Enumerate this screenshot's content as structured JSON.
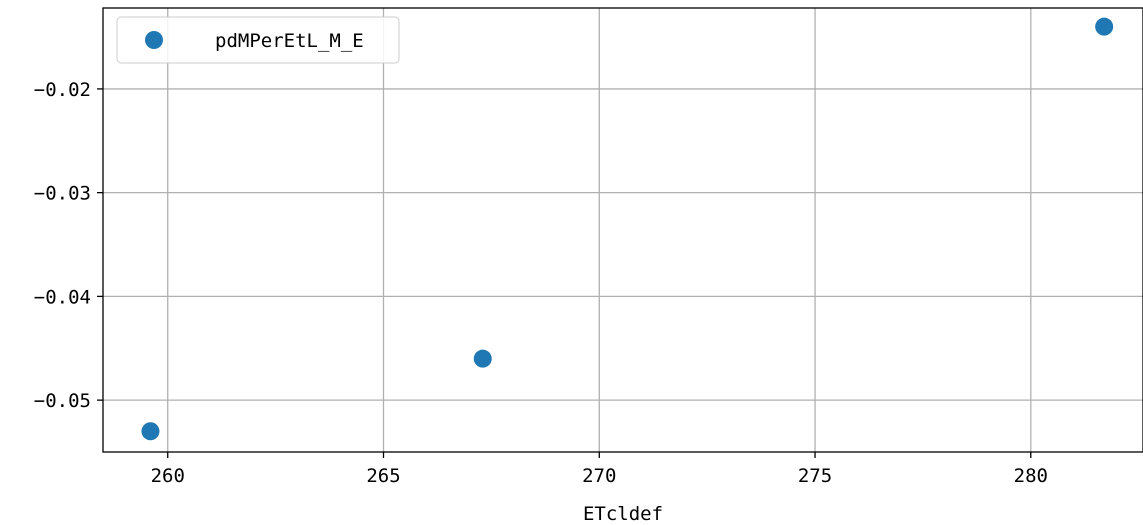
{
  "chart_data": {
    "type": "scatter",
    "xlabel": "ETcldef",
    "ylabel": "",
    "xlim": [
      258.5,
      282.6
    ],
    "ylim": [
      -0.055,
      -0.0122
    ],
    "xticks": [
      260,
      265,
      270,
      275,
      280
    ],
    "xtick_labels": [
      "260",
      "265",
      "270",
      "275",
      "280"
    ],
    "yticks": [
      -0.02,
      -0.03,
      -0.04,
      -0.05
    ],
    "ytick_labels": [
      "−0.02",
      "−0.03",
      "−0.04",
      "−0.05"
    ],
    "grid": true,
    "legend_position": "top-left",
    "series": [
      {
        "name": "pdMPerEtL_M_E",
        "color": "#1f77b4",
        "marker": "circle",
        "x": [
          259.6,
          267.3,
          281.7
        ],
        "y": [
          -0.053,
          -0.046,
          -0.014
        ]
      }
    ]
  }
}
